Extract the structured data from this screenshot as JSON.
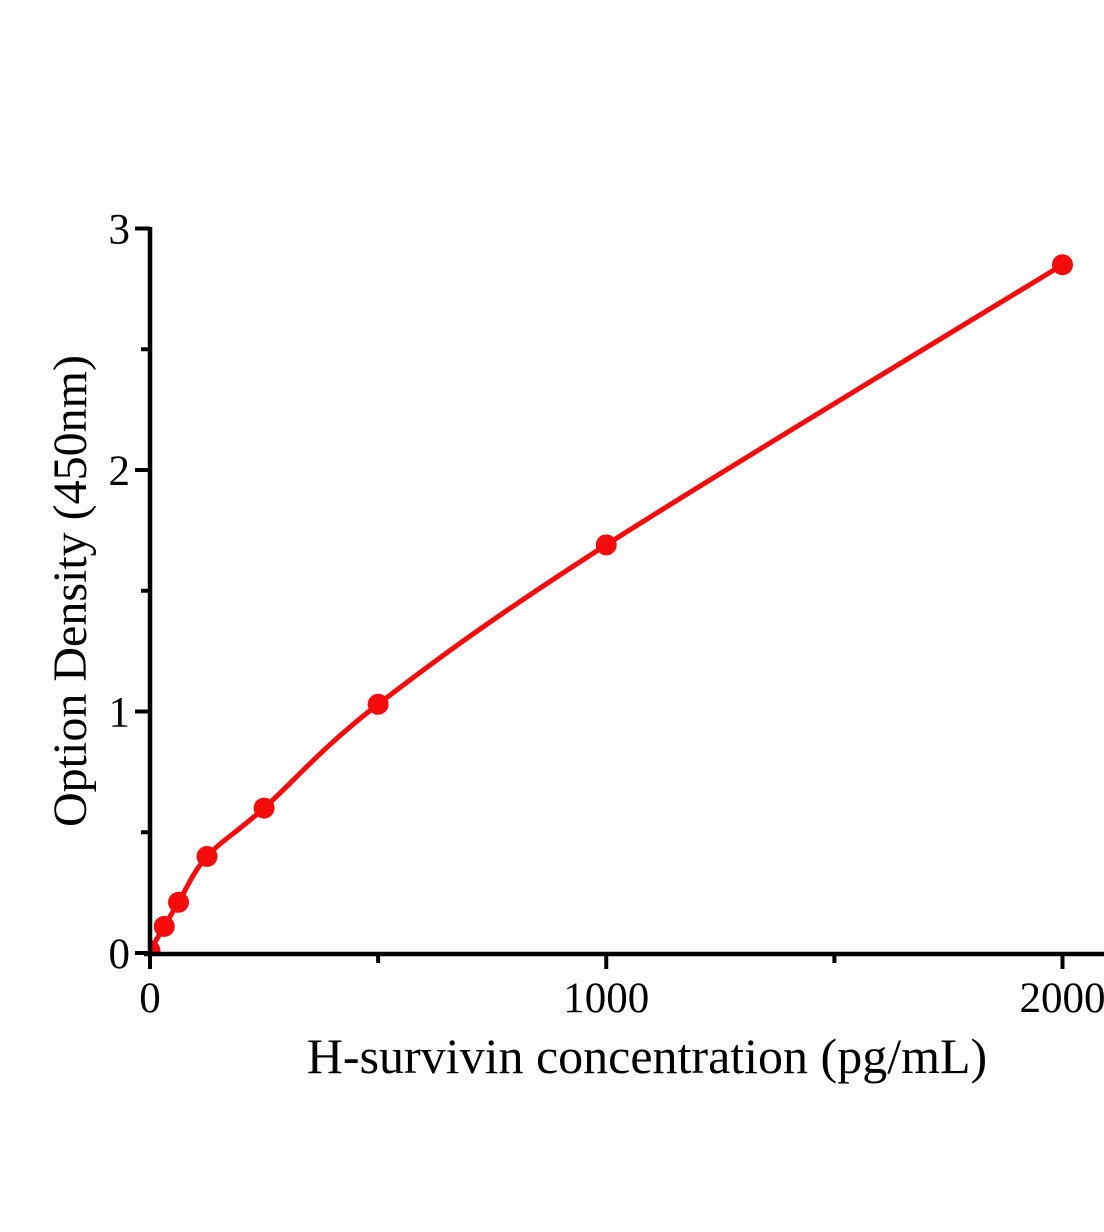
{
  "chart_data": {
    "type": "scatter",
    "subtype": "line-smooth-standard-curve",
    "title": "",
    "xlabel": "H-survivin concentration (pg/mL)",
    "ylabel": "Option Density (450nm)",
    "grid": false,
    "legend": "none",
    "background_color": "#ffffff",
    "axis_color": "#000000",
    "series": [
      {
        "name": "H-survivin standard curve",
        "color": "#f40b0b",
        "marker": "circle",
        "line_style": "smooth",
        "points": [
          {
            "x": 0,
            "y": 0.01
          },
          {
            "x": 31.25,
            "y": 0.11
          },
          {
            "x": 62.5,
            "y": 0.21
          },
          {
            "x": 125,
            "y": 0.4
          },
          {
            "x": 250,
            "y": 0.6
          },
          {
            "x": 500,
            "y": 1.03
          },
          {
            "x": 1000,
            "y": 1.69
          },
          {
            "x": 2000,
            "y": 2.85
          }
        ]
      }
    ],
    "x_axis": {
      "min": 0,
      "max": 2180,
      "major_ticks": [
        0,
        1000,
        2000
      ],
      "major_tick_labels": [
        "0",
        "1000",
        "2000"
      ],
      "minor_ticks": [
        500,
        1500
      ]
    },
    "y_axis": {
      "min": 0,
      "max": 3,
      "major_ticks": [
        0,
        1,
        2,
        3
      ],
      "major_tick_labels": [
        "0",
        "1",
        "2",
        "3"
      ],
      "minor_ticks": [
        0.5,
        1.5,
        2.5
      ]
    }
  }
}
